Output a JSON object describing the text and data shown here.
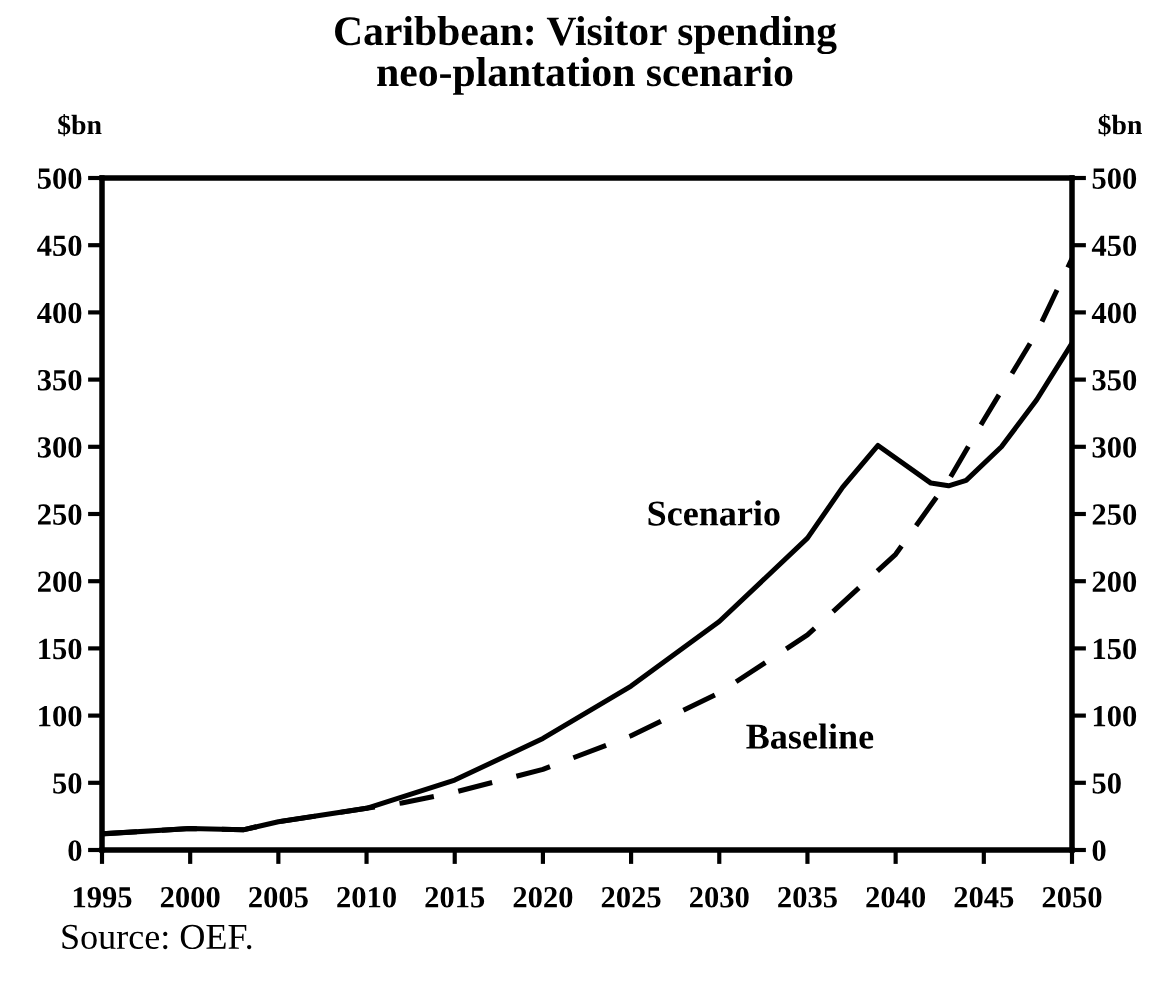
{
  "chart_data": {
    "type": "line",
    "title": "Caribbean: Visitor spending\nneo-plantation scenario",
    "ylabel": "$bn",
    "y2label": "$bn",
    "annotations": [
      "Source: OEF."
    ],
    "series": [
      {
        "name": "Scenario",
        "color": "#000000",
        "line_style": "solid",
        "x": [
          1995,
          2000,
          2003,
          2005,
          2010,
          2015,
          2020,
          2025,
          2030,
          2035,
          2037,
          2039,
          2042,
          2043,
          2044,
          2046,
          2048,
          2050
        ],
        "values": [
          12,
          16,
          15,
          21,
          31,
          52,
          83,
          122,
          170,
          232,
          270,
          301,
          273,
          271,
          275,
          300,
          335,
          377
        ]
      },
      {
        "name": "Baseline",
        "color": "#000000",
        "line_style": "dashed",
        "x": [
          1995,
          2000,
          2003,
          2005,
          2010,
          2012,
          2015,
          2020,
          2025,
          2030,
          2035,
          2040,
          2043,
          2045,
          2048,
          2050
        ],
        "values": [
          12,
          16,
          15,
          21,
          31,
          35,
          43,
          60,
          85,
          117,
          160,
          220,
          275,
          320,
          385,
          440
        ]
      }
    ],
    "xlim": [
      1995,
      2050
    ],
    "xticks": [
      1995,
      2000,
      2005,
      2010,
      2015,
      2020,
      2025,
      2030,
      2035,
      2040,
      2045,
      2050
    ],
    "ylim": [
      0,
      500
    ],
    "yticks": [
      0,
      50,
      100,
      150,
      200,
      250,
      300,
      350,
      400,
      450,
      500
    ],
    "y2lim": [
      0,
      500
    ],
    "y2ticks": [
      0,
      50,
      100,
      150,
      200,
      250,
      300,
      350,
      400,
      450,
      500
    ],
    "grid": false,
    "legend": false,
    "marker": "none"
  }
}
